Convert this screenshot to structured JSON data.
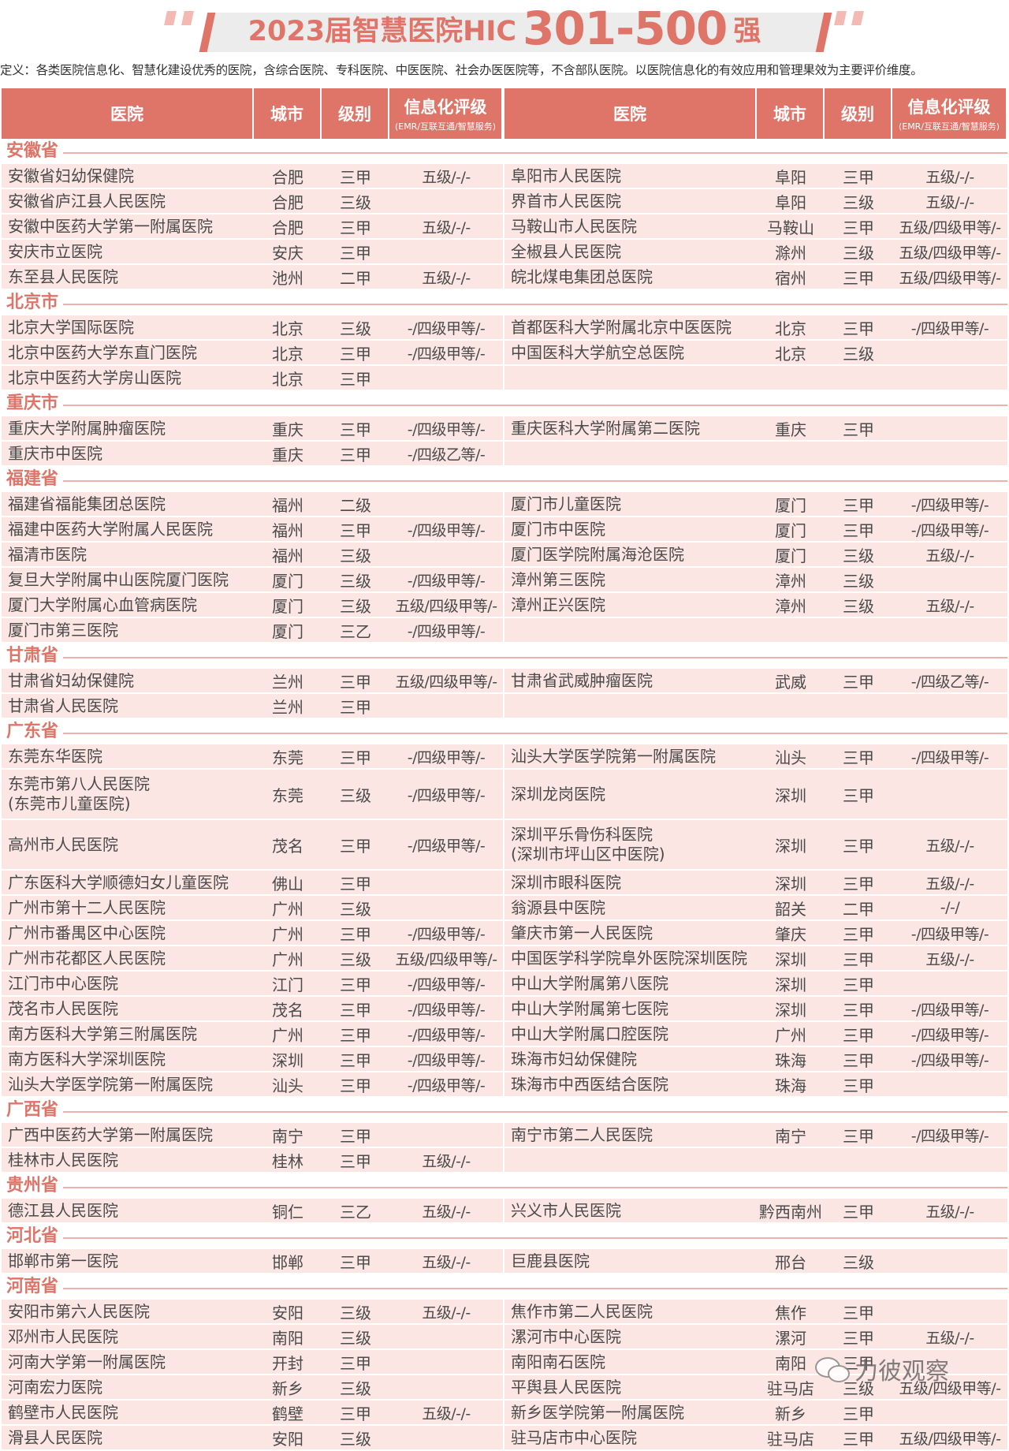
{
  "title": {
    "part1": "2023届智慧医院HIC",
    "part2": "301-500",
    "part3": "强"
  },
  "definition": "定义：各类医院信息化、智慧化建设优秀的医院，含综合医院、专科医院、中医医院、社会办医医院等，不含部队医院。以医院信息化的有效应用和管理果效为主要评价维度。",
  "header": {
    "hospital": "医院",
    "city": "城市",
    "level": "级别",
    "eval": "信息化评级",
    "eval_sub": "(EMR/互联互通/智慧服务)"
  },
  "colors": {
    "accent": "#df7468",
    "row_shade": "#fbe6e3"
  },
  "provinces": [
    {
      "name": "安徽省",
      "rows": [
        {
          "tall": false,
          "left": {
            "name": [
              "安徽省妇幼保健院"
            ],
            "city": "合肥",
            "level": "三甲",
            "eval": "五级/-/-"
          },
          "right": {
            "name": [
              "阜阳市人民医院"
            ],
            "city": "阜阳",
            "level": "三甲",
            "eval": "五级/-/-"
          }
        },
        {
          "tall": false,
          "left": {
            "name": [
              "安徽省庐江县人民医院"
            ],
            "city": "合肥",
            "level": "三级",
            "eval": ""
          },
          "right": {
            "name": [
              "界首市人民医院"
            ],
            "city": "阜阳",
            "level": "三级",
            "eval": "五级/-/-"
          }
        },
        {
          "tall": false,
          "left": {
            "name": [
              "安徽中医药大学第一附属医院"
            ],
            "city": "合肥",
            "level": "三甲",
            "eval": "五级/-/-"
          },
          "right": {
            "name": [
              "马鞍山市人民医院"
            ],
            "city": "马鞍山",
            "level": "三甲",
            "eval": "五级/四级甲等/-"
          }
        },
        {
          "tall": false,
          "left": {
            "name": [
              "安庆市立医院"
            ],
            "city": "安庆",
            "level": "三甲",
            "eval": ""
          },
          "right": {
            "name": [
              "全椒县人民医院"
            ],
            "city": "滁州",
            "level": "三级",
            "eval": "五级/四级甲等/-"
          }
        },
        {
          "tall": false,
          "left": {
            "name": [
              "东至县人民医院"
            ],
            "city": "池州",
            "level": "二甲",
            "eval": "五级/-/-"
          },
          "right": {
            "name": [
              "皖北煤电集团总医院"
            ],
            "city": "宿州",
            "level": "三甲",
            "eval": "五级/四级甲等/-"
          }
        }
      ]
    },
    {
      "name": "北京市",
      "rows": [
        {
          "tall": false,
          "left": {
            "name": [
              "北京大学国际医院"
            ],
            "city": "北京",
            "level": "三级",
            "eval": "-/四级甲等/-"
          },
          "right": {
            "name": [
              "首都医科大学附属北京中医医院"
            ],
            "city": "北京",
            "level": "三甲",
            "eval": "-/四级甲等/-"
          }
        },
        {
          "tall": false,
          "left": {
            "name": [
              "北京中医药大学东直门医院"
            ],
            "city": "北京",
            "level": "三甲",
            "eval": "-/四级甲等/-"
          },
          "right": {
            "name": [
              "中国医科大学航空总医院"
            ],
            "city": "北京",
            "level": "三级",
            "eval": ""
          }
        },
        {
          "tall": false,
          "left": {
            "name": [
              "北京中医药大学房山医院"
            ],
            "city": "北京",
            "level": "三甲",
            "eval": ""
          },
          "right": null
        }
      ]
    },
    {
      "name": "重庆市",
      "rows": [
        {
          "tall": false,
          "left": {
            "name": [
              "重庆大学附属肿瘤医院"
            ],
            "city": "重庆",
            "level": "三甲",
            "eval": "-/四级甲等/-"
          },
          "right": {
            "name": [
              "重庆医科大学附属第二医院"
            ],
            "city": "重庆",
            "level": "三甲",
            "eval": ""
          }
        },
        {
          "tall": false,
          "left": {
            "name": [
              "重庆市中医院"
            ],
            "city": "重庆",
            "level": "三甲",
            "eval": "-/四级乙等/-"
          },
          "right": null
        }
      ]
    },
    {
      "name": "福建省",
      "rows": [
        {
          "tall": false,
          "left": {
            "name": [
              "福建省福能集团总医院"
            ],
            "city": "福州",
            "level": "二级",
            "eval": ""
          },
          "right": {
            "name": [
              "厦门市儿童医院"
            ],
            "city": "厦门",
            "level": "三甲",
            "eval": "-/四级甲等/-"
          }
        },
        {
          "tall": false,
          "left": {
            "name": [
              "福建中医药大学附属人民医院"
            ],
            "city": "福州",
            "level": "三甲",
            "eval": "-/四级甲等/-"
          },
          "right": {
            "name": [
              "厦门市中医院"
            ],
            "city": "厦门",
            "level": "三甲",
            "eval": "-/四级甲等/-"
          }
        },
        {
          "tall": false,
          "left": {
            "name": [
              "福清市医院"
            ],
            "city": "福州",
            "level": "三级",
            "eval": ""
          },
          "right": {
            "name": [
              "厦门医学院附属海沧医院"
            ],
            "city": "厦门",
            "level": "三级",
            "eval": "五级/-/-"
          }
        },
        {
          "tall": false,
          "left": {
            "name": [
              "复旦大学附属中山医院厦门医院"
            ],
            "city": "厦门",
            "level": "三级",
            "eval": "-/四级甲等/-"
          },
          "right": {
            "name": [
              "漳州第三医院"
            ],
            "city": "漳州",
            "level": "三级",
            "eval": ""
          }
        },
        {
          "tall": false,
          "left": {
            "name": [
              "厦门大学附属心血管病医院"
            ],
            "city": "厦门",
            "level": "三级",
            "eval": "五级/四级甲等/-"
          },
          "right": {
            "name": [
              "漳州正兴医院"
            ],
            "city": "漳州",
            "level": "三级",
            "eval": "五级/-/-"
          }
        },
        {
          "tall": false,
          "left": {
            "name": [
              "厦门市第三医院"
            ],
            "city": "厦门",
            "level": "三乙",
            "eval": "-/四级甲等/-"
          },
          "right": null
        }
      ]
    },
    {
      "name": "甘肃省",
      "rows": [
        {
          "tall": false,
          "left": {
            "name": [
              "甘肃省妇幼保健院"
            ],
            "city": "兰州",
            "level": "三甲",
            "eval": "五级/四级甲等/-"
          },
          "right": {
            "name": [
              "甘肃省武威肿瘤医院"
            ],
            "city": "武威",
            "level": "三甲",
            "eval": "-/四级乙等/-"
          }
        },
        {
          "tall": false,
          "left": {
            "name": [
              "甘肃省人民医院"
            ],
            "city": "兰州",
            "level": "三甲",
            "eval": ""
          },
          "right": null
        }
      ]
    },
    {
      "name": "广东省",
      "rows": [
        {
          "tall": false,
          "left": {
            "name": [
              "东莞东华医院"
            ],
            "city": "东莞",
            "level": "三甲",
            "eval": "-/四级甲等/-"
          },
          "right": {
            "name": [
              "汕头大学医学院第一附属医院"
            ],
            "city": "汕头",
            "level": "三甲",
            "eval": "-/四级甲等/-"
          }
        },
        {
          "tall": false,
          "left": {
            "name": [
              "东莞市第八人民医院",
              "(东莞市儿童医院)"
            ],
            "city": "东莞",
            "level": "三级",
            "eval": "-/四级甲等/-"
          },
          "right": {
            "name": [
              "深圳龙岗医院"
            ],
            "city": "深圳",
            "level": "三甲",
            "eval": ""
          }
        },
        {
          "tall": false,
          "left": {
            "name": [
              "高州市人民医院"
            ],
            "city": "茂名",
            "level": "三甲",
            "eval": "-/四级甲等/-"
          },
          "right": {
            "name": [
              "深圳平乐骨伤科医院",
              "(深圳市坪山区中医院)"
            ],
            "city": "深圳",
            "level": "三甲",
            "eval": "五级/-/-"
          }
        },
        {
          "tall": false,
          "left": {
            "name": [
              "广东医科大学顺德妇女儿童医院"
            ],
            "city": "佛山",
            "level": "三甲",
            "eval": ""
          },
          "right": {
            "name": [
              "深圳市眼科医院"
            ],
            "city": "深圳",
            "level": "三甲",
            "eval": "五级/-/-"
          }
        },
        {
          "tall": false,
          "left": {
            "name": [
              "广州市第十二人民医院"
            ],
            "city": "广州",
            "level": "三级",
            "eval": ""
          },
          "right": {
            "name": [
              "翁源县中医院"
            ],
            "city": "韶关",
            "level": "二甲",
            "eval": "-/-/"
          }
        },
        {
          "tall": false,
          "left": {
            "name": [
              "广州市番禺区中心医院"
            ],
            "city": "广州",
            "level": "三甲",
            "eval": "-/四级甲等/-"
          },
          "right": {
            "name": [
              "肇庆市第一人民医院"
            ],
            "city": "肇庆",
            "level": "三甲",
            "eval": "-/四级甲等/-"
          }
        },
        {
          "tall": false,
          "left": {
            "name": [
              "广州市花都区人民医院"
            ],
            "city": "广州",
            "level": "三级",
            "eval": "五级/四级甲等/-"
          },
          "right": {
            "name": [
              "中国医学科学院阜外医院深圳医院"
            ],
            "city": "深圳",
            "level": "三甲",
            "eval": "五级/-/-"
          }
        },
        {
          "tall": false,
          "left": {
            "name": [
              "江门市中心医院"
            ],
            "city": "江门",
            "level": "三甲",
            "eval": "-/四级甲等/-"
          },
          "right": {
            "name": [
              "中山大学附属第八医院"
            ],
            "city": "深圳",
            "level": "三甲",
            "eval": ""
          }
        },
        {
          "tall": false,
          "left": {
            "name": [
              "茂名市人民医院"
            ],
            "city": "茂名",
            "level": "三甲",
            "eval": "-/四级甲等/-"
          },
          "right": {
            "name": [
              "中山大学附属第七医院"
            ],
            "city": "深圳",
            "level": "三甲",
            "eval": "-/四级甲等/-"
          }
        },
        {
          "tall": false,
          "left": {
            "name": [
              "南方医科大学第三附属医院"
            ],
            "city": "广州",
            "level": "三甲",
            "eval": "-/四级甲等/-"
          },
          "right": {
            "name": [
              "中山大学附属口腔医院"
            ],
            "city": "广州",
            "level": "三甲",
            "eval": "-/四级甲等/-"
          }
        },
        {
          "tall": false,
          "left": {
            "name": [
              "南方医科大学深圳医院"
            ],
            "city": "深圳",
            "level": "三甲",
            "eval": "-/四级甲等/-"
          },
          "right": {
            "name": [
              "珠海市妇幼保健院"
            ],
            "city": "珠海",
            "level": "三甲",
            "eval": "-/四级甲等/-"
          }
        },
        {
          "tall": false,
          "left": {
            "name": [
              "汕头大学医学院第一附属医院"
            ],
            "city": "汕头",
            "level": "三甲",
            "eval": "-/四级甲等/-"
          },
          "right": {
            "name": [
              "珠海市中西医结合医院"
            ],
            "city": "珠海",
            "level": "三甲",
            "eval": ""
          }
        }
      ]
    },
    {
      "name": "广西省",
      "rows": [
        {
          "tall": false,
          "left": {
            "name": [
              "广西中医药大学第一附属医院"
            ],
            "city": "南宁",
            "level": "三甲",
            "eval": ""
          },
          "right": {
            "name": [
              "南宁市第二人民医院"
            ],
            "city": "南宁",
            "level": "三甲",
            "eval": "-/四级甲等/-"
          }
        },
        {
          "tall": false,
          "left": {
            "name": [
              "桂林市人民医院"
            ],
            "city": "桂林",
            "level": "三甲",
            "eval": "五级/-/-"
          },
          "right": null
        }
      ]
    },
    {
      "name": "贵州省",
      "rows": [
        {
          "tall": false,
          "left": {
            "name": [
              "德江县人民医院"
            ],
            "city": "铜仁",
            "level": "三乙",
            "eval": "五级/-/-"
          },
          "right": {
            "name": [
              "兴义市人民医院"
            ],
            "city": "黔西南州",
            "level": "三甲",
            "eval": "五级/-/-"
          }
        }
      ]
    },
    {
      "name": "河北省",
      "rows": [
        {
          "tall": false,
          "left": {
            "name": [
              "邯郸市第一医院"
            ],
            "city": "邯郸",
            "level": "三甲",
            "eval": "五级/-/-"
          },
          "right": {
            "name": [
              "巨鹿县医院"
            ],
            "city": "邢台",
            "level": "三级",
            "eval": ""
          }
        }
      ]
    },
    {
      "name": "河南省",
      "rows": [
        {
          "tall": false,
          "left": {
            "name": [
              "安阳市第六人民医院"
            ],
            "city": "安阳",
            "level": "三级",
            "eval": "五级/-/-"
          },
          "right": {
            "name": [
              "焦作市第二人民医院"
            ],
            "city": "焦作",
            "level": "三甲",
            "eval": ""
          }
        },
        {
          "tall": false,
          "left": {
            "name": [
              "邓州市人民医院"
            ],
            "city": "南阳",
            "level": "三级",
            "eval": ""
          },
          "right": {
            "name": [
              "漯河市中心医院"
            ],
            "city": "漯河",
            "level": "三甲",
            "eval": "五级/-/-"
          }
        },
        {
          "tall": false,
          "left": {
            "name": [
              "河南大学第一附属医院"
            ],
            "city": "开封",
            "level": "三甲",
            "eval": ""
          },
          "right": {
            "name": [
              "南阳南石医院"
            ],
            "city": "南阳",
            "level": "三甲",
            "eval": ""
          }
        },
        {
          "tall": false,
          "left": {
            "name": [
              "河南宏力医院"
            ],
            "city": "新乡",
            "level": "三级",
            "eval": ""
          },
          "right": {
            "name": [
              "平舆县人民医院"
            ],
            "city": "驻马店",
            "level": "三级",
            "eval": "五级/四级甲等/-"
          }
        },
        {
          "tall": false,
          "left": {
            "name": [
              "鹤壁市人民医院"
            ],
            "city": "鹤壁",
            "level": "三甲",
            "eval": "五级/-/-"
          },
          "right": {
            "name": [
              "新乡医学院第一附属医院"
            ],
            "city": "新乡",
            "level": "三甲",
            "eval": ""
          }
        },
        {
          "tall": false,
          "left": {
            "name": [
              "滑县人民医院"
            ],
            "city": "安阳",
            "level": "三级",
            "eval": ""
          },
          "right": {
            "name": [
              "驻马店市中心医院"
            ],
            "city": "驻马店",
            "level": "三甲",
            "eval": "五级/四级甲等/-"
          }
        }
      ]
    }
  ],
  "watermark": {
    "icon": "wechat-icon",
    "text": "力彼观察"
  }
}
